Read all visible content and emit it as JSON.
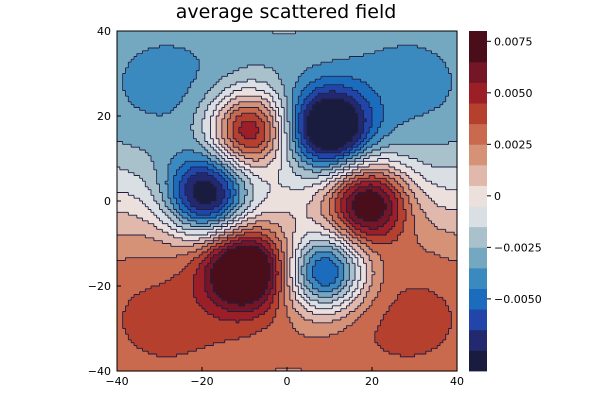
{
  "chart_data": {
    "type": "heatmap",
    "subtype": "filled-contour",
    "title": "average scattered field",
    "xlabel": "",
    "ylabel": "",
    "xlim": [
      -40,
      40
    ],
    "ylim": [
      -40,
      40
    ],
    "x_ticks": [
      -40,
      -20,
      0,
      20,
      40
    ],
    "y_ticks": [
      -40,
      -20,
      0,
      20,
      40
    ],
    "x_tick_labels": [
      "−40",
      "−20",
      "0",
      "20",
      "40"
    ],
    "y_tick_labels": [
      "−40",
      "−20",
      "0",
      "20",
      "40"
    ],
    "grid": false,
    "colorbar": {
      "range": [
        -0.0085,
        0.008
      ],
      "ticks": [
        -0.005,
        -0.0025,
        0,
        0.0025,
        0.005,
        0.0075
      ],
      "tick_labels": [
        "−0.0050",
        "−0.0025",
        "0",
        "0.0025",
        "0.0050",
        "0.0075"
      ],
      "levels": [
        -0.0085,
        -0.0075,
        -0.0065,
        -0.0055,
        -0.0045,
        -0.0035,
        -0.0025,
        -0.0015,
        -0.0005,
        0.0005,
        0.0015,
        0.0025,
        0.0035,
        0.0045,
        0.0055,
        0.0065,
        0.008
      ],
      "colors": [
        "#1a1c3f",
        "#23296e",
        "#2145a8",
        "#1b6cbd",
        "#3a8ac0",
        "#74a8c0",
        "#a9c1cb",
        "#d9dfe2",
        "#ece0dd",
        "#e1b9ac",
        "#d59277",
        "#c96a4e",
        "#b6402e",
        "#9c1f27",
        "#741626",
        "#4a0e1a"
      ]
    },
    "extrema": [
      {
        "x": -9,
        "y": 17,
        "value": 0.0078
      },
      {
        "x": 19,
        "y": 0,
        "value": 0.0078
      },
      {
        "x": -10,
        "y": -16,
        "value": 0.0078
      },
      {
        "x": 10,
        "y": 17,
        "value": -0.0082
      },
      {
        "x": -19,
        "y": 1,
        "value": -0.0082
      },
      {
        "x": 9,
        "y": -17,
        "value": -0.0082
      }
    ],
    "background_field": {
      "lobes": [
        {
          "x": -30,
          "y": -25,
          "value": 0.004
        },
        {
          "x": 30,
          "y": -25,
          "value": 0.004
        },
        {
          "x": -30,
          "y": 25,
          "value": -0.004
        },
        {
          "x": 30,
          "y": 25,
          "value": -0.004
        }
      ]
    }
  }
}
